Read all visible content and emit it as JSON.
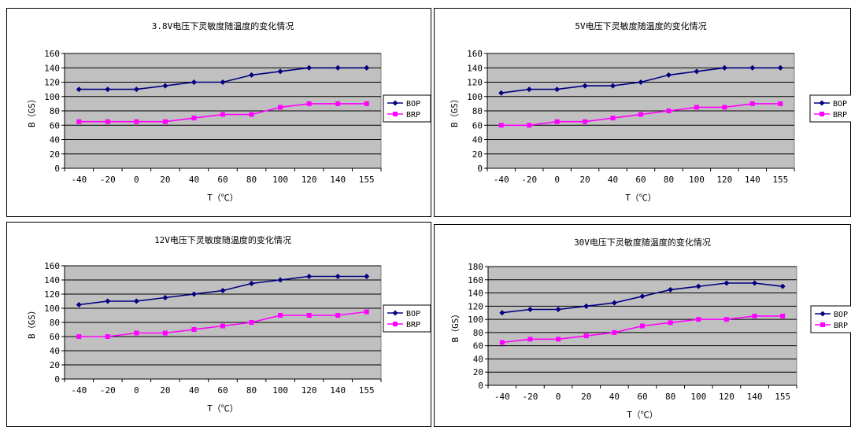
{
  "chart_data": [
    {
      "type": "line",
      "title": "3.8V电压下灵敏度随温度的变化情况",
      "xlabel": "T（℃）",
      "ylabel": "B（GS）",
      "categories": [
        "-40",
        "-20",
        "0",
        "20",
        "40",
        "60",
        "80",
        "100",
        "120",
        "140",
        "155"
      ],
      "ylim": [
        0,
        160
      ],
      "ytick_step": 20,
      "grid": true,
      "legend": "right",
      "series": [
        {
          "name": "BOP",
          "color": "#000080",
          "marker": "diamond",
          "values": [
            110,
            110,
            110,
            115,
            120,
            120,
            130,
            135,
            140,
            140,
            140
          ]
        },
        {
          "name": "BRP",
          "color": "#FF00FF",
          "marker": "square",
          "values": [
            65,
            65,
            65,
            65,
            70,
            75,
            75,
            85,
            90,
            90,
            90
          ]
        }
      ]
    },
    {
      "type": "line",
      "title": "5V电压下灵敏度随温度的变化情况",
      "xlabel": "T（℃）",
      "ylabel": "B（GS）",
      "categories": [
        "-40",
        "-20",
        "0",
        "20",
        "40",
        "60",
        "80",
        "100",
        "120",
        "140",
        "155"
      ],
      "ylim": [
        0,
        160
      ],
      "ytick_step": 20,
      "grid": true,
      "legend": "right",
      "series": [
        {
          "name": "BOP",
          "color": "#000080",
          "marker": "diamond",
          "values": [
            105,
            110,
            110,
            115,
            115,
            120,
            130,
            135,
            140,
            140,
            140
          ]
        },
        {
          "name": "BRP",
          "color": "#FF00FF",
          "marker": "square",
          "values": [
            60,
            60,
            65,
            65,
            70,
            75,
            80,
            85,
            85,
            90,
            90
          ]
        }
      ]
    },
    {
      "type": "line",
      "title": "12V电压下灵敏度随温度的变化情况",
      "xlabel": "T（℃）",
      "ylabel": "B（GS）",
      "categories": [
        "-40",
        "-20",
        "0",
        "20",
        "40",
        "60",
        "80",
        "100",
        "120",
        "140",
        "155"
      ],
      "ylim": [
        0,
        160
      ],
      "ytick_step": 20,
      "grid": true,
      "legend": "right",
      "series": [
        {
          "name": "BOP",
          "color": "#000080",
          "marker": "diamond",
          "values": [
            105,
            110,
            110,
            115,
            120,
            125,
            135,
            140,
            145,
            145,
            145
          ]
        },
        {
          "name": "BRP",
          "color": "#FF00FF",
          "marker": "square",
          "values": [
            60,
            60,
            65,
            65,
            70,
            75,
            80,
            90,
            90,
            90,
            95
          ]
        }
      ]
    },
    {
      "type": "line",
      "title": "30V电压下灵敏度随温度的变化情况",
      "xlabel": "T（℃）",
      "ylabel": "B（GS）",
      "categories": [
        "-40",
        "-20",
        "0",
        "20",
        "40",
        "60",
        "80",
        "100",
        "120",
        "140",
        "155"
      ],
      "ylim": [
        0,
        180
      ],
      "ytick_step": 20,
      "grid": true,
      "legend": "right",
      "series": [
        {
          "name": "BOP",
          "color": "#000080",
          "marker": "diamond",
          "values": [
            110,
            115,
            115,
            120,
            125,
            135,
            145,
            150,
            155,
            155,
            150
          ]
        },
        {
          "name": "BRP",
          "color": "#FF00FF",
          "marker": "square",
          "values": [
            65,
            70,
            70,
            75,
            80,
            90,
            95,
            100,
            100,
            105,
            105
          ]
        }
      ]
    }
  ],
  "colors": {
    "plot_background": "#C0C0C0",
    "gridline": "#000000"
  }
}
